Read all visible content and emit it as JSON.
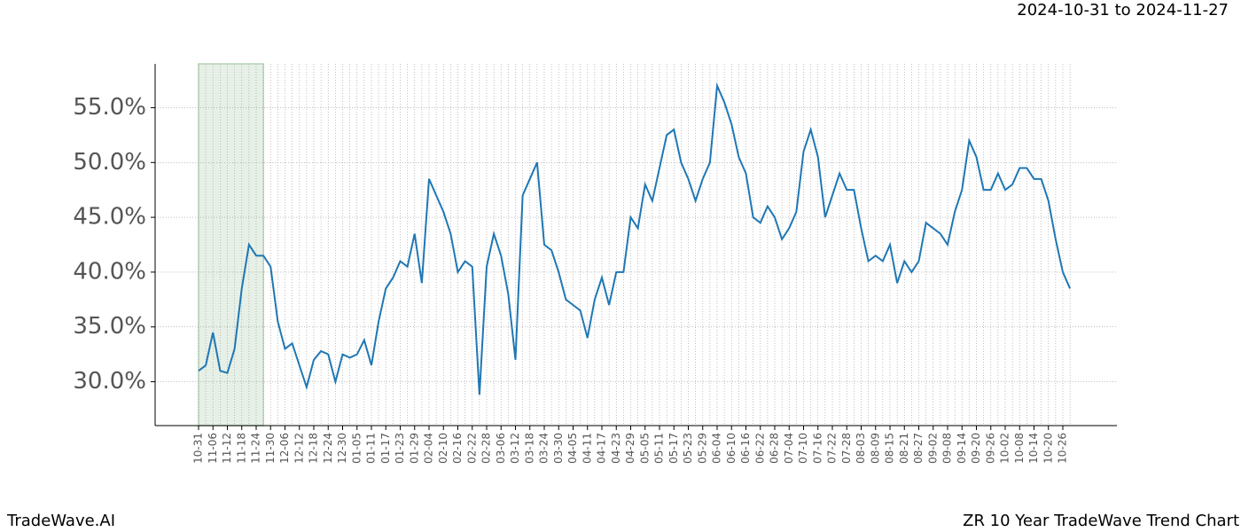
{
  "chart_data": {
    "type": "line",
    "title": "ZR 10 Year TradeWave Trend Chart",
    "subtitle": "2024-10-31 to 2024-11-27",
    "brand": "TradeWave.AI",
    "categories": [
      "10-31",
      null,
      "11-06",
      null,
      "11-12",
      null,
      "11-18",
      null,
      "11-24",
      null,
      "11-30",
      null,
      "12-06",
      null,
      "12-12",
      null,
      "12-18",
      null,
      "12-24",
      null,
      "12-30",
      null,
      "01-05",
      null,
      "01-11",
      null,
      "01-17",
      null,
      "01-23",
      null,
      "01-29",
      null,
      "02-04",
      null,
      "02-10",
      null,
      "02-16",
      null,
      "02-22",
      null,
      "02-28",
      null,
      "03-06",
      null,
      "03-12",
      null,
      "03-18",
      null,
      "03-24",
      null,
      "03-30",
      null,
      "04-05",
      null,
      "04-11",
      null,
      "04-17",
      null,
      "04-23",
      null,
      "04-29",
      null,
      "05-05",
      null,
      "05-11",
      null,
      "05-17",
      null,
      "05-23",
      null,
      "05-29",
      null,
      "06-04",
      null,
      "06-10",
      null,
      "06-16",
      null,
      "06-22",
      null,
      "06-28",
      null,
      "07-04",
      null,
      "07-10",
      null,
      "07-16",
      null,
      "07-22",
      null,
      "07-28",
      null,
      "08-03",
      null,
      "08-09",
      null,
      "08-15",
      null,
      "08-21",
      null,
      "08-27",
      null,
      "09-02",
      null,
      "09-08",
      null,
      "09-14",
      null,
      "09-20",
      null,
      "09-26",
      null,
      "10-02",
      null,
      "10-08",
      null,
      "10-14",
      null,
      "10-20",
      null,
      "10-26",
      null
    ],
    "series": [
      {
        "name": "ZR",
        "color": "#1f77b4",
        "values": [
          31.0,
          31.5,
          34.5,
          31.0,
          30.8,
          33.0,
          38.5,
          42.5,
          41.5,
          41.5,
          40.5,
          35.5,
          33.0,
          33.5,
          31.5,
          29.5,
          32.0,
          32.8,
          32.5,
          30.0,
          32.5,
          32.2,
          32.5,
          33.8,
          31.5,
          35.5,
          38.5,
          39.5,
          41.0,
          40.5,
          43.5,
          39.0,
          48.5,
          47.0,
          45.5,
          43.5,
          40.0,
          41.0,
          40.5,
          28.8,
          40.5,
          43.5,
          41.5,
          38.0,
          32.0,
          47.0,
          48.5,
          50.0,
          42.5,
          42.0,
          40.0,
          37.5,
          37.0,
          36.5,
          34.0,
          37.5,
          39.5,
          37.0,
          40.0,
          40.0,
          45.0,
          44.0,
          48.0,
          46.5,
          49.5,
          52.5,
          53.0,
          50.0,
          48.5,
          46.5,
          48.5,
          50.0,
          57.0,
          55.5,
          53.5,
          50.5,
          49.0,
          45.0,
          44.5,
          46.0,
          45.0,
          43.0,
          44.0,
          45.5,
          51.0,
          53.0,
          50.5,
          45.0,
          47.0,
          49.0,
          47.5,
          47.5,
          44.0,
          41.0,
          41.5,
          41.0,
          42.5,
          39.0,
          41.0,
          40.0,
          41.0,
          44.5,
          44.0,
          43.5,
          42.5,
          45.5,
          47.5,
          52.0,
          50.5,
          47.5,
          47.5,
          49.0,
          47.5,
          48.0,
          49.5,
          49.5,
          48.5,
          48.5,
          46.5,
          43.0,
          40.0,
          38.5
        ]
      }
    ],
    "highlight_range": [
      0,
      9
    ],
    "highlight_color": "#e6f0e6",
    "ylim": [
      26,
      59
    ],
    "yticks": [
      {
        "value": 30,
        "label": "30.0%"
      },
      {
        "value": 35,
        "label": "35.0%"
      },
      {
        "value": 40,
        "label": "40.0%"
      },
      {
        "value": 45,
        "label": "45.0%"
      },
      {
        "value": 50,
        "label": "50.0%"
      },
      {
        "value": 55,
        "label": "55.0%"
      }
    ],
    "grid": true
  }
}
